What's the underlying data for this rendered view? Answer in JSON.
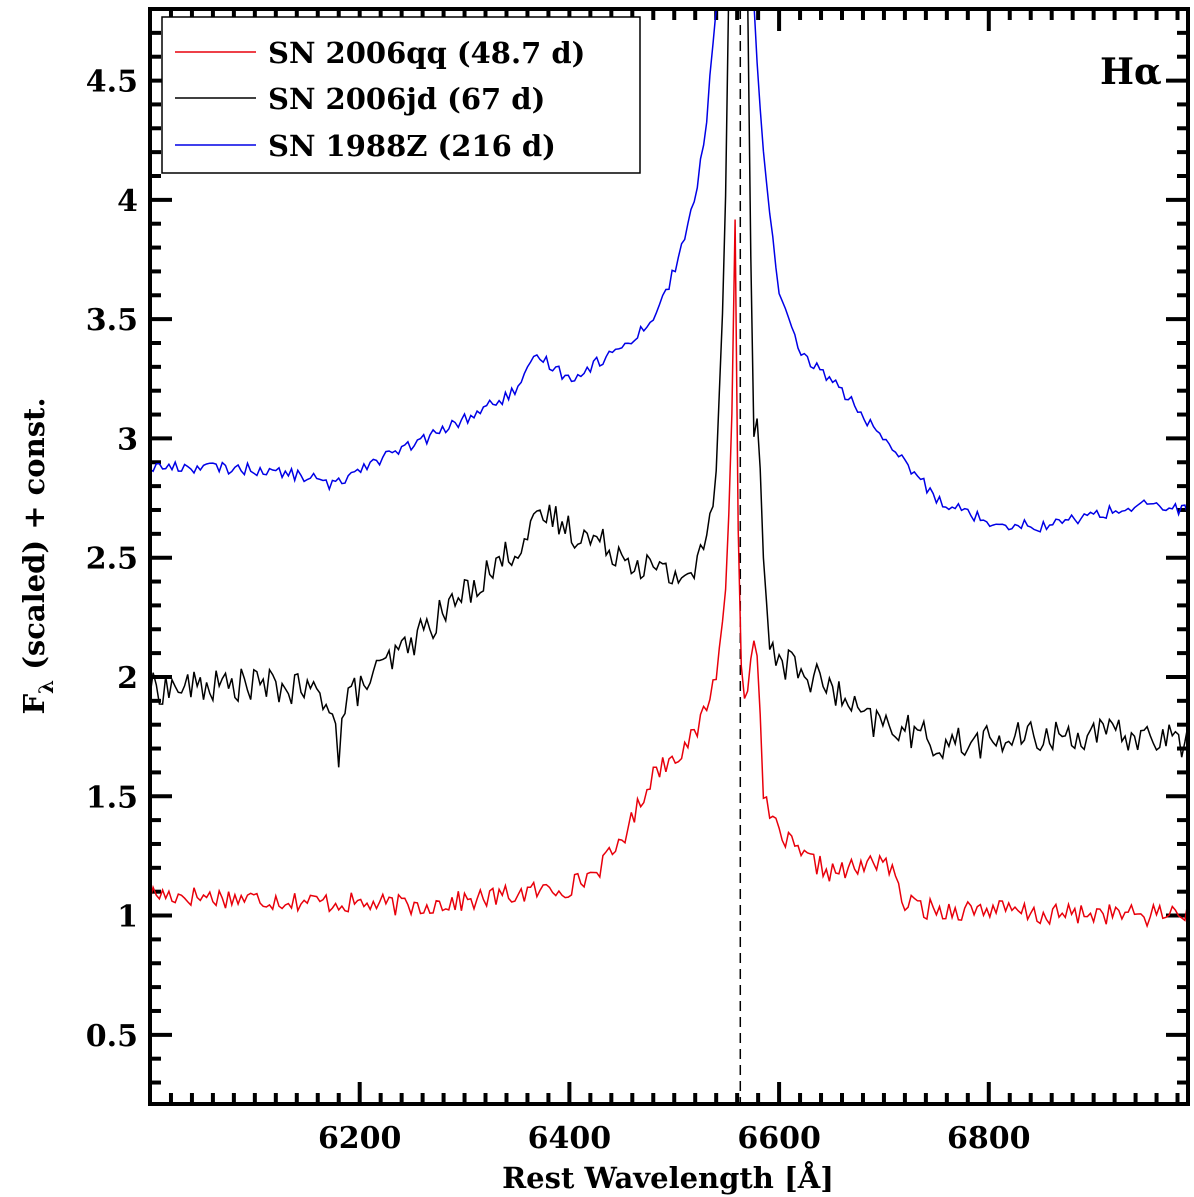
{
  "chart_data": {
    "type": "line",
    "xlabel": "Rest Wavelength [Å]",
    "ylabel_main": "F",
    "ylabel_sub": "λ",
    "ylabel_rest": " (scaled) + const.",
    "xlim": [
      6000,
      6990
    ],
    "ylim": [
      0.21,
      4.8
    ],
    "xticks": [
      6200,
      6400,
      6600,
      6800
    ],
    "yticks": [
      0.5,
      1,
      1.5,
      2,
      2.5,
      3,
      3.5,
      4,
      4.5
    ],
    "ytick_labels": [
      "0.5",
      "1",
      "1.5",
      "2",
      "2.5",
      "3",
      "3.5",
      "4",
      "4.5"
    ],
    "reference_line_x": 6563,
    "annotation": "Hα",
    "legend_position": "top-left",
    "series": [
      {
        "name": "SN 2006qq (48.7 d)",
        "color": "#e8000b",
        "x": [
          6000,
          6050,
          6100,
          6150,
          6200,
          6250,
          6300,
          6350,
          6400,
          6420,
          6440,
          6460,
          6480,
          6500,
          6520,
          6540,
          6550,
          6555,
          6558,
          6562,
          6566,
          6570,
          6575,
          6580,
          6585,
          6590,
          6600,
          6620,
          6650,
          6680,
          6700,
          6720,
          6750,
          6800,
          6850,
          6900,
          6950,
          6990
        ],
        "y": [
          1.09,
          1.08,
          1.07,
          1.06,
          1.05,
          1.04,
          1.06,
          1.09,
          1.12,
          1.17,
          1.25,
          1.4,
          1.6,
          1.67,
          1.75,
          2.0,
          2.4,
          3.1,
          3.92,
          2.2,
          1.9,
          1.95,
          2.18,
          2.05,
          1.5,
          1.42,
          1.35,
          1.25,
          1.18,
          1.2,
          1.25,
          1.05,
          1.02,
          1.03,
          1.0,
          1.01,
          1.0,
          1.02
        ]
      },
      {
        "name": "SN 2006jd (67 d)",
        "color": "#000000",
        "x": [
          6000,
          6050,
          6100,
          6150,
          6175,
          6180,
          6185,
          6200,
          6250,
          6300,
          6350,
          6380,
          6400,
          6450,
          6480,
          6500,
          6520,
          6530,
          6540,
          6548,
          6552,
          6556,
          6560,
          6565,
          6570,
          6575,
          6580,
          6585,
          6590,
          6600,
          6620,
          6650,
          6680,
          6700,
          6720,
          6750,
          6800,
          6850,
          6900,
          6950,
          6990
        ],
        "y": [
          1.95,
          1.96,
          1.97,
          1.94,
          1.9,
          1.62,
          1.9,
          1.95,
          2.15,
          2.35,
          2.55,
          2.68,
          2.62,
          2.52,
          2.45,
          2.42,
          2.45,
          2.55,
          2.85,
          3.75,
          4.9,
          4.9,
          4.9,
          4.9,
          4.9,
          3.0,
          3.1,
          2.5,
          2.15,
          2.07,
          2.03,
          1.95,
          1.82,
          1.8,
          1.78,
          1.72,
          1.73,
          1.75,
          1.76,
          1.75,
          1.73
        ]
      },
      {
        "name": "SN 1988Z (216 d)",
        "color": "#0000e6",
        "x": [
          6000,
          6050,
          6100,
          6150,
          6175,
          6200,
          6250,
          6300,
          6350,
          6370,
          6400,
          6450,
          6480,
          6500,
          6520,
          6530,
          6540,
          6548,
          6552,
          6575,
          6580,
          6585,
          6590,
          6600,
          6620,
          6650,
          6680,
          6700,
          6720,
          6750,
          6800,
          6850,
          6900,
          6950,
          6990
        ],
        "y": [
          2.88,
          2.88,
          2.87,
          2.84,
          2.8,
          2.88,
          2.97,
          3.08,
          3.2,
          3.35,
          3.25,
          3.38,
          3.5,
          3.7,
          4.0,
          4.3,
          4.8,
          4.9,
          4.9,
          4.9,
          4.5,
          4.2,
          4.0,
          3.6,
          3.35,
          3.25,
          3.1,
          2.98,
          2.9,
          2.75,
          2.65,
          2.63,
          2.68,
          2.72,
          2.7
        ]
      }
    ]
  }
}
